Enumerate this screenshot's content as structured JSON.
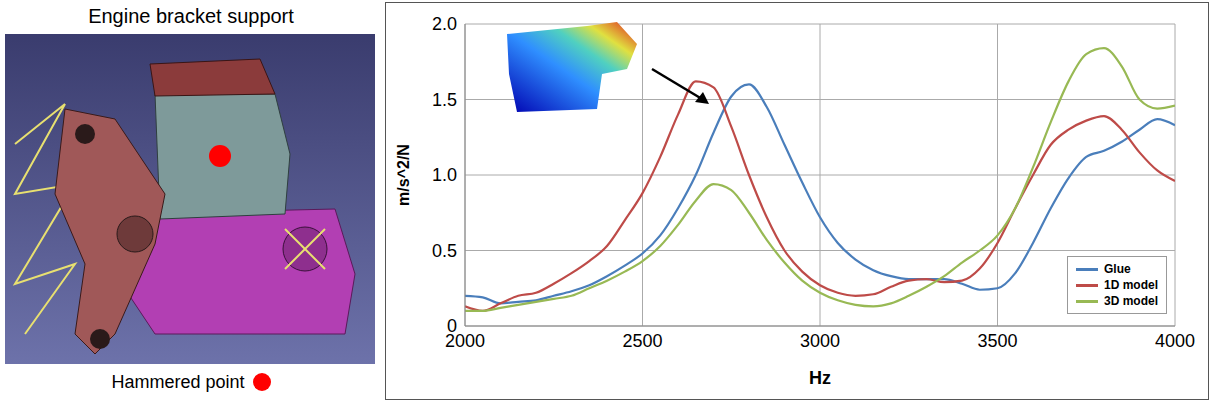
{
  "figure": {
    "left_title": "Engine bracket support",
    "left_caption": "Hammered point"
  },
  "chart_data": {
    "type": "line",
    "x_label": "Hz",
    "y_label": "m/s^2/N",
    "xlim": [
      2000,
      4000
    ],
    "xticks": [
      2000,
      2500,
      3000,
      3500,
      4000
    ],
    "ylim": [
      0,
      2
    ],
    "yticks": [
      0,
      0.5,
      {
        "value": 1,
        "label": "1.0"
      },
      1.5,
      {
        "value": 2,
        "label": "2.0"
      }
    ],
    "grid": true,
    "legend": "lower right",
    "x": [
      2000,
      2050,
      2100,
      2150,
      2200,
      2250,
      2300,
      2350,
      2400,
      2450,
      2500,
      2550,
      2600,
      2650,
      2700,
      2750,
      2800,
      2850,
      2900,
      2950,
      3000,
      3050,
      3100,
      3150,
      3200,
      3250,
      3300,
      3350,
      3400,
      3450,
      3500,
      3550,
      3600,
      3650,
      3700,
      3750,
      3800,
      3850,
      3900,
      3950,
      4000
    ],
    "series": [
      {
        "name": "Glue",
        "color": "#4a7ebb",
        "values": [
          0.2,
          0.19,
          0.15,
          0.16,
          0.17,
          0.2,
          0.23,
          0.27,
          0.33,
          0.4,
          0.48,
          0.6,
          0.78,
          1.0,
          1.28,
          1.52,
          1.6,
          1.45,
          1.2,
          0.95,
          0.72,
          0.55,
          0.44,
          0.37,
          0.33,
          0.31,
          0.31,
          0.31,
          0.28,
          0.24,
          0.25,
          0.35,
          0.55,
          0.78,
          0.98,
          1.12,
          1.16,
          1.22,
          1.3,
          1.37,
          1.33
        ]
      },
      {
        "name": "1D model",
        "color": "#be4b48",
        "values": [
          0.13,
          0.1,
          0.15,
          0.2,
          0.22,
          0.28,
          0.35,
          0.43,
          0.53,
          0.7,
          0.88,
          1.12,
          1.4,
          1.62,
          1.58,
          1.32,
          1.0,
          0.72,
          0.5,
          0.36,
          0.27,
          0.22,
          0.2,
          0.21,
          0.26,
          0.3,
          0.31,
          0.29,
          0.3,
          0.38,
          0.55,
          0.78,
          1.0,
          1.2,
          1.3,
          1.36,
          1.39,
          1.3,
          1.15,
          1.03,
          0.96
        ]
      },
      {
        "name": "3D model",
        "color": "#98b954",
        "values": [
          0.1,
          0.1,
          0.12,
          0.14,
          0.16,
          0.18,
          0.2,
          0.25,
          0.3,
          0.36,
          0.43,
          0.53,
          0.67,
          0.83,
          0.94,
          0.9,
          0.75,
          0.57,
          0.42,
          0.3,
          0.22,
          0.17,
          0.14,
          0.13,
          0.15,
          0.2,
          0.26,
          0.33,
          0.42,
          0.5,
          0.6,
          0.78,
          1.05,
          1.35,
          1.62,
          1.8,
          1.84,
          1.72,
          1.5,
          1.44,
          1.46
        ]
      }
    ]
  }
}
